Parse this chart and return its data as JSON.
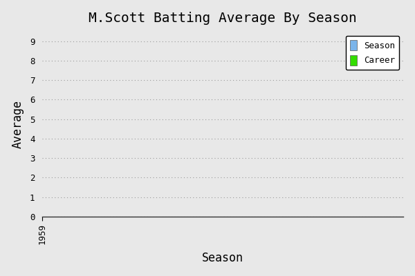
{
  "title": "M.Scott Batting Average By Season",
  "xlabel": "Season",
  "ylabel": "Average",
  "xlim": [
    1959,
    1970
  ],
  "ylim": [
    0,
    9.5
  ],
  "yticks": [
    0,
    1,
    2,
    3,
    4,
    5,
    6,
    7,
    8,
    9
  ],
  "xticks": [
    1959
  ],
  "xtick_labels": [
    "1959"
  ],
  "season_color": "#7ab4ea",
  "career_color": "#33dd00",
  "background_color": "#e8e8e8",
  "plot_bg_color": "#e8e8e8",
  "grid_color": "#999999",
  "legend_labels": [
    "Season",
    "Career"
  ],
  "title_fontsize": 14,
  "axis_label_fontsize": 12,
  "tick_fontsize": 9,
  "font_family": "monospace"
}
